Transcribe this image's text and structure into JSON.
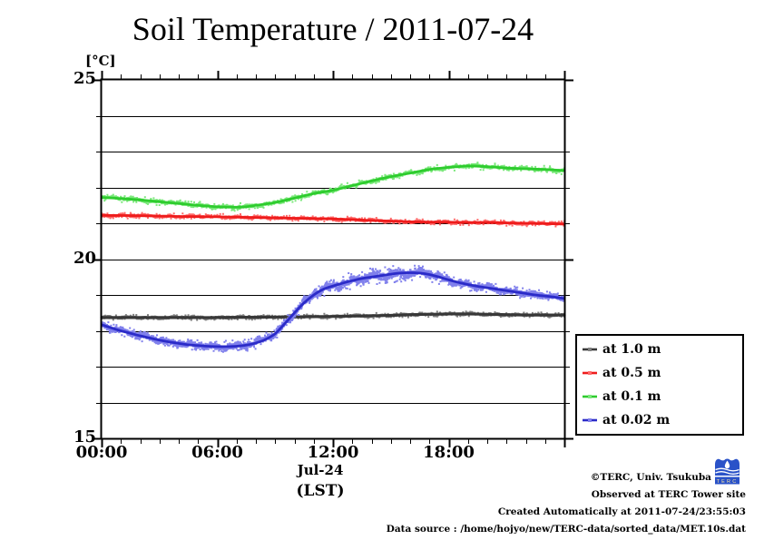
{
  "title": "Soil Temperature / 2011-07-24",
  "y_unit_label": "[°C]",
  "x_axis": {
    "date_label": "Jul-24",
    "tz_label": "(LST)",
    "ticks": [
      {
        "hour": 0,
        "label": "00:00"
      },
      {
        "hour": 6,
        "label": "06:00"
      },
      {
        "hour": 12,
        "label": "12:00"
      },
      {
        "hour": 18,
        "label": "18:00"
      }
    ]
  },
  "y_axis": {
    "major": [
      {
        "value": 25,
        "label": "25"
      },
      {
        "value": 20,
        "label": "20"
      },
      {
        "value": 15,
        "label": "15"
      }
    ]
  },
  "chart_data": {
    "type": "line",
    "title": "Soil Temperature / 2011-07-24",
    "xlabel": "Jul-24 (LST)",
    "ylabel": "[°C]",
    "xlim_hours": [
      0,
      24
    ],
    "ylim": [
      15,
      25
    ],
    "grid": "horizontal lines every 1 degree C",
    "legend_position": "outside right, below plot middle",
    "series": [
      {
        "name": "at 1.0 m",
        "color": "#383838",
        "noise_color": "#7f7f7f",
        "noise_amp": 0.055,
        "x": [
          0,
          2,
          4,
          6,
          8,
          10,
          12,
          13,
          14,
          15,
          16,
          17,
          18,
          19,
          20,
          21,
          22,
          23,
          24
        ],
        "y": [
          18.37,
          18.37,
          18.37,
          18.37,
          18.38,
          18.39,
          18.4,
          18.41,
          18.42,
          18.43,
          18.45,
          18.46,
          18.47,
          18.47,
          18.46,
          18.45,
          18.44,
          18.44,
          18.44
        ]
      },
      {
        "name": "at 0.5 m",
        "color": "#ee1c1c",
        "noise_color": "#ff6a6a",
        "noise_amp": 0.06,
        "x": [
          0,
          2,
          4,
          6,
          8,
          10,
          12,
          14,
          15,
          16,
          17,
          18,
          19,
          20,
          21,
          22,
          23,
          24
        ],
        "y": [
          21.22,
          21.21,
          21.19,
          21.18,
          21.16,
          21.14,
          21.12,
          21.08,
          21.06,
          21.04,
          21.03,
          21.03,
          21.02,
          21.02,
          21.01,
          21.0,
          20.99,
          20.98
        ]
      },
      {
        "name": "at 0.1 m",
        "color": "#2ecc2e",
        "noise_color": "#7ae87a",
        "noise_amp": 0.075,
        "x": [
          0,
          1,
          2,
          3,
          4,
          5,
          6,
          6.5,
          7,
          7.5,
          8,
          9,
          10,
          11,
          12,
          13,
          14,
          15,
          16,
          17,
          18,
          18.5,
          19,
          20,
          21,
          22,
          23,
          24
        ],
        "y": [
          21.72,
          21.69,
          21.65,
          21.6,
          21.55,
          21.5,
          21.46,
          21.45,
          21.45,
          21.46,
          21.5,
          21.58,
          21.7,
          21.83,
          21.92,
          22.05,
          22.18,
          22.3,
          22.4,
          22.5,
          22.56,
          22.58,
          22.6,
          22.58,
          22.54,
          22.52,
          22.5,
          22.47
        ]
      },
      {
        "name": "at 0.02 m",
        "color": "#2b2bc8",
        "noise_color": "#8080ec",
        "noise_amp": 0.13,
        "noise_amp_profile": [
          [
            0,
            0.1
          ],
          [
            5,
            0.11
          ],
          [
            7,
            0.12
          ],
          [
            9,
            0.13
          ],
          [
            11,
            0.15
          ],
          [
            13,
            0.17
          ],
          [
            15,
            0.18
          ],
          [
            16,
            0.17
          ],
          [
            17,
            0.15
          ],
          [
            18,
            0.13
          ],
          [
            20,
            0.11
          ],
          [
            24,
            0.1
          ]
        ],
        "x": [
          0,
          0.5,
          1,
          1.5,
          2,
          2.5,
          3,
          3.5,
          4,
          4.5,
          5,
          5.5,
          6,
          6.5,
          7,
          7.5,
          8,
          8.5,
          9,
          9.5,
          10,
          10.5,
          11,
          11.5,
          12,
          12.5,
          13,
          13.5,
          14,
          14.5,
          15,
          15.5,
          16,
          16.5,
          17,
          17.5,
          18,
          18.5,
          19,
          19.5,
          20,
          20.5,
          21,
          21.5,
          22,
          22.5,
          23,
          23.5,
          24
        ],
        "y": [
          18.17,
          18.08,
          18.0,
          17.93,
          17.86,
          17.8,
          17.74,
          17.69,
          17.65,
          17.61,
          17.59,
          17.57,
          17.56,
          17.56,
          17.57,
          17.6,
          17.66,
          17.76,
          17.92,
          18.2,
          18.5,
          18.78,
          19.0,
          19.16,
          19.25,
          19.33,
          19.4,
          19.46,
          19.5,
          19.54,
          19.58,
          19.61,
          19.62,
          19.61,
          19.57,
          19.5,
          19.42,
          19.35,
          19.29,
          19.24,
          19.2,
          19.16,
          19.12,
          19.08,
          19.04,
          19.0,
          18.97,
          18.94,
          18.9
        ]
      }
    ]
  },
  "footer": {
    "line1": "©TERC, Univ. Tsukuba",
    "line2": "Observed at TERC Tower site",
    "line3": "Created Automatically at 2011-07-24/23:55:03",
    "line4": "Data source : /home/hojyo/new/TERC-data/sorted_data/MET.10s.dat"
  },
  "logo": {
    "text": "TERC",
    "color": "#2a52c8"
  }
}
